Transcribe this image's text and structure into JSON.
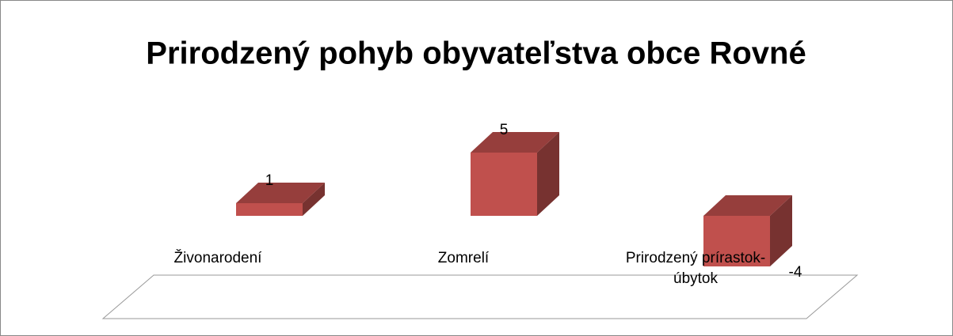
{
  "chart_data": {
    "type": "bar3d",
    "title": "Prirodzený pohyb obyvateľstva obce Rovné",
    "categories": [
      "Živonarodení",
      "Zomrelí",
      "Prirodzený prírastok-úbytok"
    ],
    "values": [
      1,
      5,
      -4
    ],
    "color": "#c0504d"
  }
}
